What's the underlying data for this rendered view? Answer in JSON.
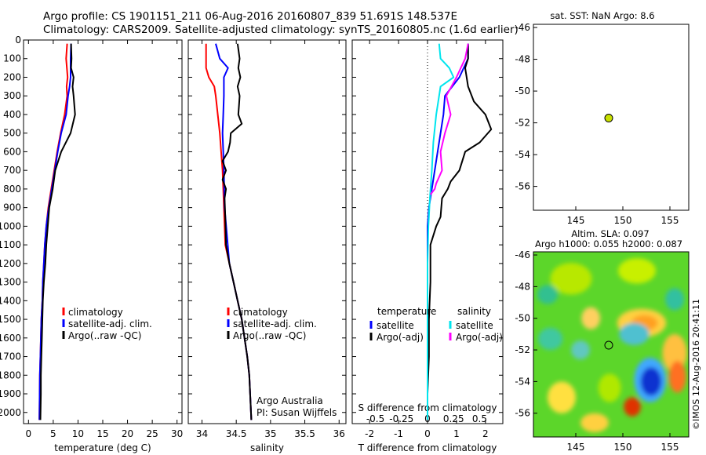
{
  "header": {
    "line1": "Argo profile: CS 1901151_211 06-Aug-2016 20160807_839 51.691S 148.537E",
    "line2": "Climatology: CARS2009. Satellite-adjusted climatology: synTS_20160805.nc (1.6d earlier)"
  },
  "colors": {
    "climatology": "#ff0000",
    "satellite": "#0000ff",
    "argo": "#000000",
    "temperature_satellite": "#0000ff",
    "salinity_satellite": "#00e5ee",
    "salinity_argo": "#ff00ff",
    "marker": "#c8e000"
  },
  "chart_data": [
    {
      "id": "temperature",
      "type": "line",
      "xlabel": "temperature (deg C)",
      "xlim": [
        -1,
        31
      ],
      "xticks": [
        0,
        5,
        10,
        15,
        20,
        25,
        30
      ],
      "ylim": [
        0,
        2060
      ],
      "yticks": [
        0,
        100,
        200,
        300,
        400,
        500,
        600,
        700,
        800,
        900,
        1000,
        1100,
        1200,
        1300,
        1400,
        1500,
        1600,
        1700,
        1800,
        1900,
        2000
      ],
      "legend": [
        "climatology",
        "satellite-adj. clim.",
        "Argo(..raw -QC)"
      ],
      "series": [
        {
          "name": "climatology",
          "color_key": "climatology",
          "x": [
            7.8,
            7.6,
            7.9,
            7.7,
            7.8,
            7.3,
            6.5,
            5.8,
            5.2,
            4.6,
            4.0,
            3.6,
            3.3,
            3.1,
            2.9,
            2.8,
            2.6,
            2.5,
            2.4,
            2.3,
            2.2
          ],
          "y": [
            20,
            100,
            200,
            250,
            300,
            400,
            500,
            600,
            700,
            800,
            900,
            1000,
            1100,
            1200,
            1300,
            1400,
            1500,
            1600,
            1700,
            1800,
            2040
          ]
        },
        {
          "name": "satellite-adj. clim.",
          "color_key": "satellite",
          "x": [
            8.6,
            8.5,
            8.5,
            8.3,
            8.0,
            7.6,
            6.6,
            5.9,
            5.3,
            4.7,
            4.1,
            3.6,
            3.3,
            3.1,
            2.9,
            2.8,
            2.6,
            2.5,
            2.4,
            2.3,
            2.2
          ],
          "y": [
            20,
            100,
            200,
            250,
            300,
            400,
            500,
            600,
            700,
            800,
            900,
            1000,
            1100,
            1200,
            1300,
            1400,
            1500,
            1600,
            1700,
            1800,
            2040
          ]
        },
        {
          "name": "Argo(..raw -QC)",
          "color_key": "argo",
          "x": [
            8.6,
            8.7,
            8.6,
            9.1,
            8.9,
            9.1,
            9.4,
            8.5,
            6.6,
            5.4,
            4.9,
            4.2,
            3.9,
            3.6,
            3.4,
            3.1,
            2.9,
            2.8,
            2.7,
            2.6,
            2.5,
            2.5,
            2.4
          ],
          "y": [
            20,
            100,
            150,
            200,
            250,
            300,
            400,
            500,
            600,
            700,
            800,
            900,
            1000,
            1100,
            1200,
            1300,
            1400,
            1500,
            1600,
            1700,
            1800,
            1900,
            2040
          ]
        }
      ]
    },
    {
      "id": "salinity",
      "type": "line",
      "xlabel": "salinity",
      "xlim": [
        33.8,
        36.1
      ],
      "xticks": [
        34,
        34.5,
        35,
        35.5,
        36
      ],
      "ylim": [
        0,
        2060
      ],
      "legend": [
        "climatology",
        "satellite-adj. clim.",
        "Argo(..raw -QC)"
      ],
      "annotations": [
        "Argo Australia",
        "PI: Susan Wijffels"
      ],
      "series": [
        {
          "name": "climatology",
          "color_key": "climatology",
          "x": [
            34.06,
            34.06,
            34.1,
            34.18,
            34.2,
            34.23,
            34.26,
            34.28,
            34.3,
            34.31,
            34.32,
            34.33,
            34.34,
            34.4,
            34.46,
            34.52,
            34.58,
            34.62,
            34.66,
            34.69,
            34.72
          ],
          "y": [
            20,
            150,
            200,
            250,
            300,
            400,
            500,
            600,
            700,
            800,
            900,
            1000,
            1100,
            1200,
            1300,
            1400,
            1500,
            1600,
            1700,
            1800,
            2040
          ]
        },
        {
          "name": "satellite-adj. clim.",
          "color_key": "satellite",
          "x": [
            34.2,
            34.26,
            34.38,
            34.32,
            34.32,
            34.31,
            34.3,
            34.31,
            34.32,
            34.33,
            34.4,
            34.46,
            34.52,
            34.58,
            34.62,
            34.66,
            34.69,
            34.72
          ],
          "y": [
            20,
            100,
            150,
            200,
            300,
            400,
            500,
            600,
            700,
            900,
            1200,
            1300,
            1400,
            1500,
            1600,
            1700,
            1800,
            2040
          ]
        },
        {
          "name": "Argo(..raw -QC)",
          "color_key": "argo",
          "x": [
            34.52,
            34.55,
            34.53,
            34.56,
            34.52,
            34.55,
            34.54,
            34.53,
            34.58,
            34.42,
            34.41,
            34.38,
            34.3,
            34.35,
            34.3,
            34.35,
            34.33,
            34.34,
            34.35,
            34.4,
            34.46,
            34.52,
            34.58,
            34.62,
            34.66,
            34.69,
            34.72
          ],
          "y": [
            20,
            100,
            150,
            200,
            250,
            300,
            350,
            400,
            450,
            500,
            550,
            600,
            650,
            700,
            750,
            800,
            850,
            950,
            1100,
            1200,
            1300,
            1400,
            1500,
            1600,
            1700,
            1800,
            2040
          ]
        }
      ]
    },
    {
      "id": "difference",
      "type": "line",
      "xlabel": "T difference from climatology",
      "xlabel_top": "S difference from climatology",
      "xlim": [
        -2.6,
        2.6
      ],
      "xticks": [
        -2,
        -1,
        0,
        1,
        2
      ],
      "sticks_labels": [
        "-0.5",
        "-0.25",
        "0",
        "0.25",
        "0.5"
      ],
      "sticks_t": [
        -1.8,
        -0.9,
        0,
        0.9,
        1.8
      ],
      "ylim": [
        0,
        2060
      ],
      "legend_left_title": "temperature",
      "legend_right_title": "salinity",
      "legend": [
        "satellite",
        "Argo(-adj)",
        "satellite",
        "Argo(-adj)"
      ],
      "series": [
        {
          "name": "temperature satellite",
          "color_key": "temperature_satellite",
          "x": [
            1.4,
            1.4,
            1.1,
            0.6,
            0.55,
            0.45,
            0.35,
            0.25,
            0.15,
            0.05,
            0.0,
            0.0,
            0.0,
            0.0,
            0.0
          ],
          "y": [
            20,
            100,
            200,
            300,
            400,
            500,
            600,
            700,
            800,
            900,
            1000,
            1200,
            1400,
            1800,
            2040
          ]
        },
        {
          "name": "temperature Argo(-adj)",
          "color_key": "argo",
          "x": [
            1.4,
            1.4,
            1.3,
            1.4,
            1.6,
            2.0,
            2.2,
            1.8,
            1.3,
            1.1,
            0.8,
            0.7,
            0.5,
            0.45,
            0.3,
            0.1,
            0.1,
            0.05,
            0.05,
            0.0,
            0.0
          ],
          "y": [
            20,
            100,
            150,
            250,
            330,
            400,
            480,
            550,
            600,
            700,
            760,
            800,
            850,
            950,
            1000,
            1100,
            1300,
            1500,
            1700,
            1900,
            2040
          ]
        },
        {
          "name": "salinity satellite",
          "color_key": "salinity_satellite",
          "x": [
            0.4,
            0.45,
            0.75,
            0.9,
            0.45,
            0.3,
            0.2,
            0.15,
            0.08,
            0.03,
            0.0,
            0.0
          ],
          "y": [
            20,
            100,
            150,
            200,
            250,
            400,
            550,
            700,
            850,
            1000,
            1200,
            2040
          ]
        },
        {
          "name": "salinity Argo(-adj)",
          "color_key": "salinity_argo",
          "x": [
            1.4,
            1.3,
            1.0,
            0.65,
            0.8,
            0.6,
            0.45,
            0.5,
            0.3,
            0.25,
            0.1
          ],
          "y": [
            20,
            100,
            200,
            300,
            400,
            500,
            600,
            700,
            770,
            800,
            830
          ]
        }
      ]
    },
    {
      "id": "sst_map",
      "type": "scatter",
      "title": "sat. SST: NaN Argo: 8.6",
      "xlim": [
        140.5,
        157
      ],
      "ylim": [
        -57.5,
        -45.8
      ],
      "xticks": [
        145,
        150,
        155
      ],
      "yticks": [
        -46,
        -48,
        -50,
        -52,
        -54,
        -56
      ],
      "points": [
        {
          "x": 148.5,
          "y": -51.7
        }
      ]
    },
    {
      "id": "sla_map",
      "type": "heatmap",
      "title_line1": "Altim. SLA: 0.097",
      "title_line2": "Argo h1000: 0.055 h2000: 0.087",
      "side_label": "©IMOS 12-Aug-2016 20:41:11",
      "xlim": [
        140.5,
        157
      ],
      "ylim": [
        -57.5,
        -45.8
      ],
      "xticks": [
        145,
        150,
        155
      ],
      "yticks": [
        -46,
        -48,
        -50,
        -52,
        -54,
        -56
      ],
      "points": [
        {
          "x": 148.5,
          "y": -51.7
        }
      ],
      "blobs": [
        {
          "x": 144.5,
          "y": -47.5,
          "rx": 2.2,
          "ry": 1.0,
          "color": "#b8e800"
        },
        {
          "x": 151.5,
          "y": -47.0,
          "rx": 2.0,
          "ry": 0.8,
          "color": "#c8f000"
        },
        {
          "x": 152.0,
          "y": -50.3,
          "rx": 2.6,
          "ry": 0.9,
          "color": "#ffd040"
        },
        {
          "x": 152.3,
          "y": -50.3,
          "rx": 1.4,
          "ry": 0.5,
          "color": "#ffa020"
        },
        {
          "x": 146.6,
          "y": -50.0,
          "rx": 1.0,
          "ry": 0.7,
          "color": "#ffd060"
        },
        {
          "x": 142.3,
          "y": -51.3,
          "rx": 1.3,
          "ry": 0.7,
          "color": "#40c8a0"
        },
        {
          "x": 145.5,
          "y": -52.0,
          "rx": 1.0,
          "ry": 0.6,
          "color": "#60c8c0"
        },
        {
          "x": 151.2,
          "y": -51.0,
          "rx": 1.6,
          "ry": 0.7,
          "color": "#50c0d0"
        },
        {
          "x": 155.5,
          "y": -52.2,
          "rx": 1.3,
          "ry": 1.2,
          "color": "#ffc040"
        },
        {
          "x": 155.8,
          "y": -53.7,
          "rx": 0.9,
          "ry": 1.0,
          "color": "#ff7020"
        },
        {
          "x": 152.9,
          "y": -53.9,
          "rx": 1.7,
          "ry": 1.4,
          "color": "#40a8ff"
        },
        {
          "x": 153.0,
          "y": -54.0,
          "rx": 1.1,
          "ry": 0.9,
          "color": "#1030d0"
        },
        {
          "x": 151.0,
          "y": -55.6,
          "rx": 0.9,
          "ry": 0.6,
          "color": "#e03000"
        },
        {
          "x": 143.5,
          "y": -55.0,
          "rx": 1.5,
          "ry": 1.0,
          "color": "#ffe040"
        },
        {
          "x": 147.0,
          "y": -56.6,
          "rx": 1.5,
          "ry": 0.6,
          "color": "#ffd040"
        },
        {
          "x": 148.6,
          "y": -54.4,
          "rx": 1.2,
          "ry": 0.9,
          "color": "#b0e800"
        },
        {
          "x": 142.0,
          "y": -48.5,
          "rx": 1.1,
          "ry": 0.6,
          "color": "#30c090"
        },
        {
          "x": 155.5,
          "y": -48.8,
          "rx": 1.0,
          "ry": 0.7,
          "color": "#30c0a0"
        }
      ]
    }
  ]
}
